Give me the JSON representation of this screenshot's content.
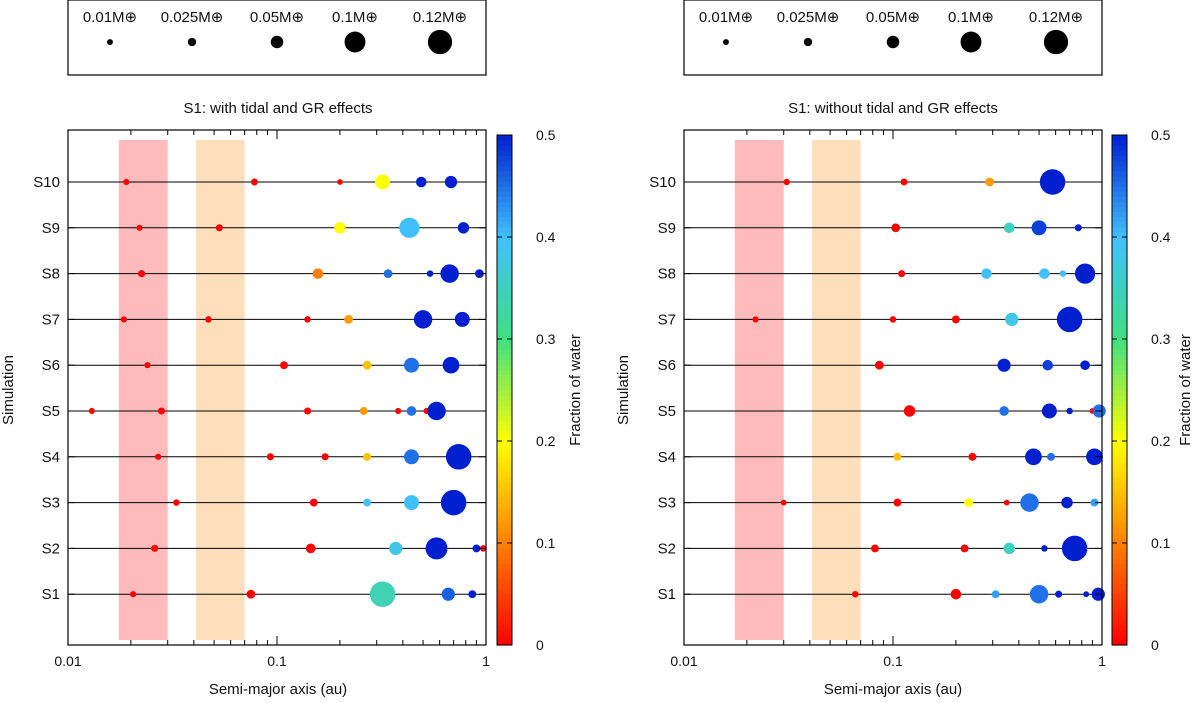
{
  "figure_title": "Planetary systems S1-S10: semi-major axis vs. water fraction",
  "legend": {
    "title_left": "0.01M⊕",
    "entries": [
      {
        "label": "0.01M⊕",
        "mass": 0.01
      },
      {
        "label": "0.025M⊕",
        "mass": 0.025
      },
      {
        "label": "0.05M⊕",
        "mass": 0.05
      },
      {
        "label": "0.1M⊕",
        "mass": 0.1
      },
      {
        "label": "0.12M⊕",
        "mass": 0.12
      }
    ]
  },
  "colorbar": {
    "label": "Fraction of water",
    "ticks": [
      "0",
      "0.1",
      "0.2",
      "0.3",
      "0.4",
      "0.5"
    ],
    "tick_values": [
      0,
      0.1,
      0.2,
      0.3,
      0.4,
      0.5
    ],
    "colors": [
      "#ff0000",
      "#ff8000",
      "#ffff00",
      "#40e080",
      "#40c0ff",
      "#0020d0"
    ]
  },
  "chart_data": [
    {
      "type": "scatter",
      "title": "S1: with tidal and GR effects",
      "xlabel": "Semi-major axis (au)",
      "ylabel": "Simulation",
      "xscale": "log",
      "xlim": [
        0.01,
        1
      ],
      "xticks": [
        "0.01",
        "0.1",
        "1"
      ],
      "categories": [
        "S1",
        "S2",
        "S3",
        "S4",
        "S5",
        "S6",
        "S7",
        "S8",
        "S9",
        "S10"
      ],
      "shaded_regions": [
        {
          "name": "inner",
          "xmin": 0.0175,
          "xmax": 0.03,
          "color": "#ffbbbb"
        },
        {
          "name": "outer",
          "xmin": 0.041,
          "xmax": 0.07,
          "color": "#ffdfbb"
        }
      ],
      "series": [
        {
          "name": "S1",
          "points": [
            {
              "a": 0.0205,
              "m": 0.01,
              "w": 0.0
            },
            {
              "a": 0.075,
              "m": 0.025,
              "w": 0.0
            },
            {
              "a": 0.32,
              "m": 0.12,
              "w": 0.34
            },
            {
              "a": 0.66,
              "m": 0.05,
              "w": 0.46
            },
            {
              "a": 0.86,
              "m": 0.02,
              "w": 0.5
            }
          ]
        },
        {
          "name": "S2",
          "points": [
            {
              "a": 0.026,
              "m": 0.015,
              "w": 0.0
            },
            {
              "a": 0.145,
              "m": 0.03,
              "w": 0.0
            },
            {
              "a": 0.37,
              "m": 0.05,
              "w": 0.38
            },
            {
              "a": 0.58,
              "m": 0.1,
              "w": 0.5
            },
            {
              "a": 0.9,
              "m": 0.02,
              "w": 0.5
            },
            {
              "a": 0.97,
              "m": 0.012,
              "w": 0.0
            }
          ]
        },
        {
          "name": "S3",
          "points": [
            {
              "a": 0.033,
              "m": 0.012,
              "w": 0.0
            },
            {
              "a": 0.15,
              "m": 0.02,
              "w": 0.0
            },
            {
              "a": 0.27,
              "m": 0.02,
              "w": 0.4
            },
            {
              "a": 0.44,
              "m": 0.06,
              "w": 0.4
            },
            {
              "a": 0.7,
              "m": 0.12,
              "w": 0.5
            }
          ]
        },
        {
          "name": "S4",
          "points": [
            {
              "a": 0.027,
              "m": 0.01,
              "w": 0.0
            },
            {
              "a": 0.093,
              "m": 0.015,
              "w": 0.0
            },
            {
              "a": 0.17,
              "m": 0.015,
              "w": 0.0
            },
            {
              "a": 0.27,
              "m": 0.02,
              "w": 0.15
            },
            {
              "a": 0.44,
              "m": 0.06,
              "w": 0.45
            },
            {
              "a": 0.74,
              "m": 0.12,
              "w": 0.5
            }
          ]
        },
        {
          "name": "S5",
          "points": [
            {
              "a": 0.013,
              "m": 0.01,
              "w": 0.0
            },
            {
              "a": 0.028,
              "m": 0.015,
              "w": 0.0
            },
            {
              "a": 0.14,
              "m": 0.015,
              "w": 0.0
            },
            {
              "a": 0.26,
              "m": 0.02,
              "w": 0.12
            },
            {
              "a": 0.38,
              "m": 0.01,
              "w": 0.0
            },
            {
              "a": 0.44,
              "m": 0.03,
              "w": 0.45
            },
            {
              "a": 0.52,
              "m": 0.01,
              "w": 0.0
            },
            {
              "a": 0.58,
              "m": 0.08,
              "w": 0.5
            }
          ]
        },
        {
          "name": "S6",
          "points": [
            {
              "a": 0.024,
              "m": 0.01,
              "w": 0.0
            },
            {
              "a": 0.108,
              "m": 0.02,
              "w": 0.0
            },
            {
              "a": 0.27,
              "m": 0.025,
              "w": 0.15
            },
            {
              "a": 0.44,
              "m": 0.06,
              "w": 0.45
            },
            {
              "a": 0.68,
              "m": 0.07,
              "w": 0.5
            }
          ]
        },
        {
          "name": "S7",
          "points": [
            {
              "a": 0.0185,
              "m": 0.01,
              "w": 0.0
            },
            {
              "a": 0.047,
              "m": 0.012,
              "w": 0.0
            },
            {
              "a": 0.14,
              "m": 0.012,
              "w": 0.0
            },
            {
              "a": 0.22,
              "m": 0.025,
              "w": 0.12
            },
            {
              "a": 0.5,
              "m": 0.08,
              "w": 0.5
            },
            {
              "a": 0.77,
              "m": 0.06,
              "w": 0.5
            }
          ]
        },
        {
          "name": "S8",
          "points": [
            {
              "a": 0.0225,
              "m": 0.015,
              "w": 0.0
            },
            {
              "a": 0.157,
              "m": 0.035,
              "w": 0.1
            },
            {
              "a": 0.34,
              "m": 0.025,
              "w": 0.45
            },
            {
              "a": 0.54,
              "m": 0.012,
              "w": 0.5
            },
            {
              "a": 0.67,
              "m": 0.08,
              "w": 0.5
            },
            {
              "a": 0.93,
              "m": 0.025,
              "w": 0.5
            }
          ]
        },
        {
          "name": "S9",
          "points": [
            {
              "a": 0.022,
              "m": 0.01,
              "w": 0.0
            },
            {
              "a": 0.053,
              "m": 0.015,
              "w": 0.0
            },
            {
              "a": 0.2,
              "m": 0.04,
              "w": 0.2
            },
            {
              "a": 0.43,
              "m": 0.09,
              "w": 0.4
            },
            {
              "a": 0.78,
              "m": 0.04,
              "w": 0.5
            }
          ]
        },
        {
          "name": "S10",
          "points": [
            {
              "a": 0.019,
              "m": 0.01,
              "w": 0.0
            },
            {
              "a": 0.078,
              "m": 0.015,
              "w": 0.0
            },
            {
              "a": 0.2,
              "m": 0.008,
              "w": 0.0
            },
            {
              "a": 0.32,
              "m": 0.06,
              "w": 0.2
            },
            {
              "a": 0.49,
              "m": 0.035,
              "w": 0.5
            },
            {
              "a": 0.68,
              "m": 0.045,
              "w": 0.5
            }
          ]
        }
      ]
    },
    {
      "type": "scatter",
      "title": "S1: without tidal and GR effects",
      "xlabel": "Semi-major axis (au)",
      "ylabel": "Simulation",
      "xscale": "log",
      "xlim": [
        0.01,
        1
      ],
      "xticks": [
        "0.01",
        "0.1",
        "1"
      ],
      "categories": [
        "S1",
        "S2",
        "S3",
        "S4",
        "S5",
        "S6",
        "S7",
        "S8",
        "S9",
        "S10"
      ],
      "shaded_regions": [
        {
          "name": "inner",
          "xmin": 0.0175,
          "xmax": 0.03,
          "color": "#ffbbbb"
        },
        {
          "name": "outer",
          "xmin": 0.041,
          "xmax": 0.07,
          "color": "#ffdfbb"
        }
      ],
      "series": [
        {
          "name": "S1",
          "points": [
            {
              "a": 0.066,
              "m": 0.012,
              "w": 0.0
            },
            {
              "a": 0.2,
              "m": 0.035,
              "w": 0.0
            },
            {
              "a": 0.31,
              "m": 0.02,
              "w": 0.42
            },
            {
              "a": 0.5,
              "m": 0.08,
              "w": 0.45
            },
            {
              "a": 0.62,
              "m": 0.015,
              "w": 0.5
            },
            {
              "a": 0.84,
              "m": 0.008,
              "w": 0.5
            },
            {
              "a": 0.96,
              "m": 0.05,
              "w": 0.5
            }
          ]
        },
        {
          "name": "S2",
          "points": [
            {
              "a": 0.082,
              "m": 0.02,
              "w": 0.0
            },
            {
              "a": 0.22,
              "m": 0.02,
              "w": 0.0
            },
            {
              "a": 0.36,
              "m": 0.04,
              "w": 0.35
            },
            {
              "a": 0.53,
              "m": 0.012,
              "w": 0.5
            },
            {
              "a": 0.74,
              "m": 0.12,
              "w": 0.5
            }
          ]
        },
        {
          "name": "S3",
          "points": [
            {
              "a": 0.03,
              "m": 0.008,
              "w": 0.0
            },
            {
              "a": 0.105,
              "m": 0.02,
              "w": 0.0
            },
            {
              "a": 0.23,
              "m": 0.025,
              "w": 0.2
            },
            {
              "a": 0.35,
              "m": 0.008,
              "w": 0.0
            },
            {
              "a": 0.45,
              "m": 0.08,
              "w": 0.45
            },
            {
              "a": 0.68,
              "m": 0.04,
              "w": 0.5
            },
            {
              "a": 0.92,
              "m": 0.02,
              "w": 0.42
            }
          ]
        },
        {
          "name": "S4",
          "points": [
            {
              "a": 0.105,
              "m": 0.02,
              "w": 0.15
            },
            {
              "a": 0.24,
              "m": 0.02,
              "w": 0.0
            },
            {
              "a": 0.47,
              "m": 0.07,
              "w": 0.5
            },
            {
              "a": 0.57,
              "m": 0.02,
              "w": 0.45
            },
            {
              "a": 0.92,
              "m": 0.07,
              "w": 0.5
            }
          ]
        },
        {
          "name": "S5",
          "points": [
            {
              "a": 0.12,
              "m": 0.04,
              "w": 0.0
            },
            {
              "a": 0.34,
              "m": 0.03,
              "w": 0.45
            },
            {
              "a": 0.56,
              "m": 0.06,
              "w": 0.5
            },
            {
              "a": 0.7,
              "m": 0.012,
              "w": 0.5
            },
            {
              "a": 0.9,
              "m": 0.008,
              "w": 0.0
            },
            {
              "a": 0.97,
              "m": 0.05,
              "w": 0.45
            }
          ]
        },
        {
          "name": "S6",
          "points": [
            {
              "a": 0.086,
              "m": 0.025,
              "w": 0.0
            },
            {
              "a": 0.34,
              "m": 0.05,
              "w": 0.5
            },
            {
              "a": 0.55,
              "m": 0.035,
              "w": 0.48
            },
            {
              "a": 0.83,
              "m": 0.03,
              "w": 0.5
            }
          ]
        },
        {
          "name": "S7",
          "points": [
            {
              "a": 0.022,
              "m": 0.01,
              "w": 0.0
            },
            {
              "a": 0.1,
              "m": 0.012,
              "w": 0.0
            },
            {
              "a": 0.2,
              "m": 0.02,
              "w": 0.0
            },
            {
              "a": 0.37,
              "m": 0.05,
              "w": 0.38
            },
            {
              "a": 0.7,
              "m": 0.12,
              "w": 0.5
            }
          ]
        },
        {
          "name": "S8",
          "points": [
            {
              "a": 0.11,
              "m": 0.015,
              "w": 0.0
            },
            {
              "a": 0.28,
              "m": 0.035,
              "w": 0.4
            },
            {
              "a": 0.53,
              "m": 0.035,
              "w": 0.4
            },
            {
              "a": 0.65,
              "m": 0.012,
              "w": 0.4
            },
            {
              "a": 0.83,
              "m": 0.09,
              "w": 0.5
            }
          ]
        },
        {
          "name": "S9",
          "points": [
            {
              "a": 0.103,
              "m": 0.025,
              "w": 0.0
            },
            {
              "a": 0.36,
              "m": 0.035,
              "w": 0.35
            },
            {
              "a": 0.5,
              "m": 0.06,
              "w": 0.48
            },
            {
              "a": 0.77,
              "m": 0.015,
              "w": 0.5
            }
          ]
        },
        {
          "name": "S10",
          "points": [
            {
              "a": 0.031,
              "m": 0.012,
              "w": 0.0
            },
            {
              "a": 0.113,
              "m": 0.015,
              "w": 0.0
            },
            {
              "a": 0.29,
              "m": 0.025,
              "w": 0.12
            },
            {
              "a": 0.58,
              "m": 0.12,
              "w": 0.5
            }
          ]
        }
      ]
    }
  ]
}
